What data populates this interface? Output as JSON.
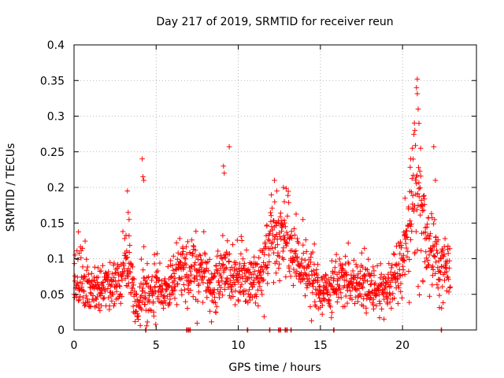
{
  "chart_data": {
    "type": "scatter",
    "title": "Day 217 of 2019, SRMTID for receiver reun",
    "xlabel": "GPS time / hours",
    "ylabel": "SRMTID / TECUs",
    "xlim": [
      0,
      24.5
    ],
    "ylim": [
      0,
      0.4
    ],
    "x_ticks": [
      0,
      5,
      10,
      15,
      20
    ],
    "x_tick_labels": [
      "0",
      "5",
      "10",
      "15",
      "20"
    ],
    "y_ticks": [
      0,
      0.05,
      0.1,
      0.15,
      0.2,
      0.25,
      0.3,
      0.35,
      0.4
    ],
    "y_tick_labels": [
      "0",
      "0.05",
      "0.1",
      "0.15",
      "0.2",
      "0.25",
      "0.3",
      "0.35",
      "0.4"
    ],
    "grid": true,
    "marker": "+",
    "series": [
      {
        "name": "SRMTID",
        "color": "#ff0000",
        "profile_x": [
          0.0,
          0.5,
          1.0,
          1.5,
          2.0,
          2.5,
          3.0,
          3.3,
          3.6,
          3.9,
          4.2,
          4.5,
          5.0,
          5.5,
          6.0,
          6.5,
          7.0,
          7.5,
          8.0,
          8.5,
          9.0,
          9.5,
          10.0,
          10.5,
          11.0,
          11.5,
          12.0,
          12.5,
          13.0,
          13.5,
          14.0,
          14.5,
          15.0,
          15.5,
          16.0,
          16.5,
          17.0,
          17.5,
          18.0,
          18.5,
          19.0,
          19.5,
          20.0,
          20.3,
          20.6,
          20.9,
          21.2,
          21.5,
          22.0,
          22.5,
          22.9
        ],
        "profile_center": [
          0.065,
          0.075,
          0.06,
          0.055,
          0.06,
          0.065,
          0.085,
          0.09,
          0.05,
          0.03,
          0.06,
          0.05,
          0.06,
          0.055,
          0.07,
          0.075,
          0.085,
          0.09,
          0.075,
          0.05,
          0.09,
          0.07,
          0.075,
          0.08,
          0.07,
          0.085,
          0.14,
          0.13,
          0.12,
          0.1,
          0.085,
          0.075,
          0.055,
          0.05,
          0.07,
          0.075,
          0.065,
          0.07,
          0.06,
          0.055,
          0.06,
          0.07,
          0.09,
          0.13,
          0.17,
          0.21,
          0.14,
          0.13,
          0.1,
          0.09,
          0.085
        ],
        "profile_spread": [
          0.022,
          0.025,
          0.02,
          0.018,
          0.02,
          0.02,
          0.03,
          0.035,
          0.02,
          0.015,
          0.03,
          0.02,
          0.025,
          0.025,
          0.025,
          0.025,
          0.03,
          0.03,
          0.025,
          0.02,
          0.03,
          0.025,
          0.025,
          0.025,
          0.025,
          0.03,
          0.035,
          0.035,
          0.035,
          0.03,
          0.025,
          0.025,
          0.02,
          0.02,
          0.025,
          0.025,
          0.02,
          0.025,
          0.02,
          0.02,
          0.02,
          0.025,
          0.03,
          0.04,
          0.05,
          0.06,
          0.045,
          0.04,
          0.03,
          0.03,
          0.025
        ],
        "x_extent": [
          0.0,
          22.9
        ],
        "sample_count": 1500,
        "outliers_x": [
          3.25,
          3.3,
          3.35,
          4.15,
          4.2,
          4.25,
          9.1,
          9.15,
          9.45,
          12.2,
          12.35,
          12.75,
          12.8,
          20.15,
          20.5,
          20.6,
          20.75,
          20.85,
          20.9,
          20.95,
          21.0,
          21.1,
          21.9,
          22.0
        ],
        "outliers_y": [
          0.195,
          0.165,
          0.155,
          0.24,
          0.215,
          0.21,
          0.23,
          0.22,
          0.257,
          0.21,
          0.195,
          0.2,
          0.18,
          0.185,
          0.24,
          0.255,
          0.28,
          0.34,
          0.352,
          0.31,
          0.29,
          0.255,
          0.257,
          0.21
        ],
        "zero_cluster_x": [
          4.35,
          6.85,
          6.95,
          7.05,
          10.55,
          11.9,
          12.45,
          12.55,
          12.85,
          12.95,
          13.2,
          15.8,
          22.35
        ]
      }
    ]
  }
}
